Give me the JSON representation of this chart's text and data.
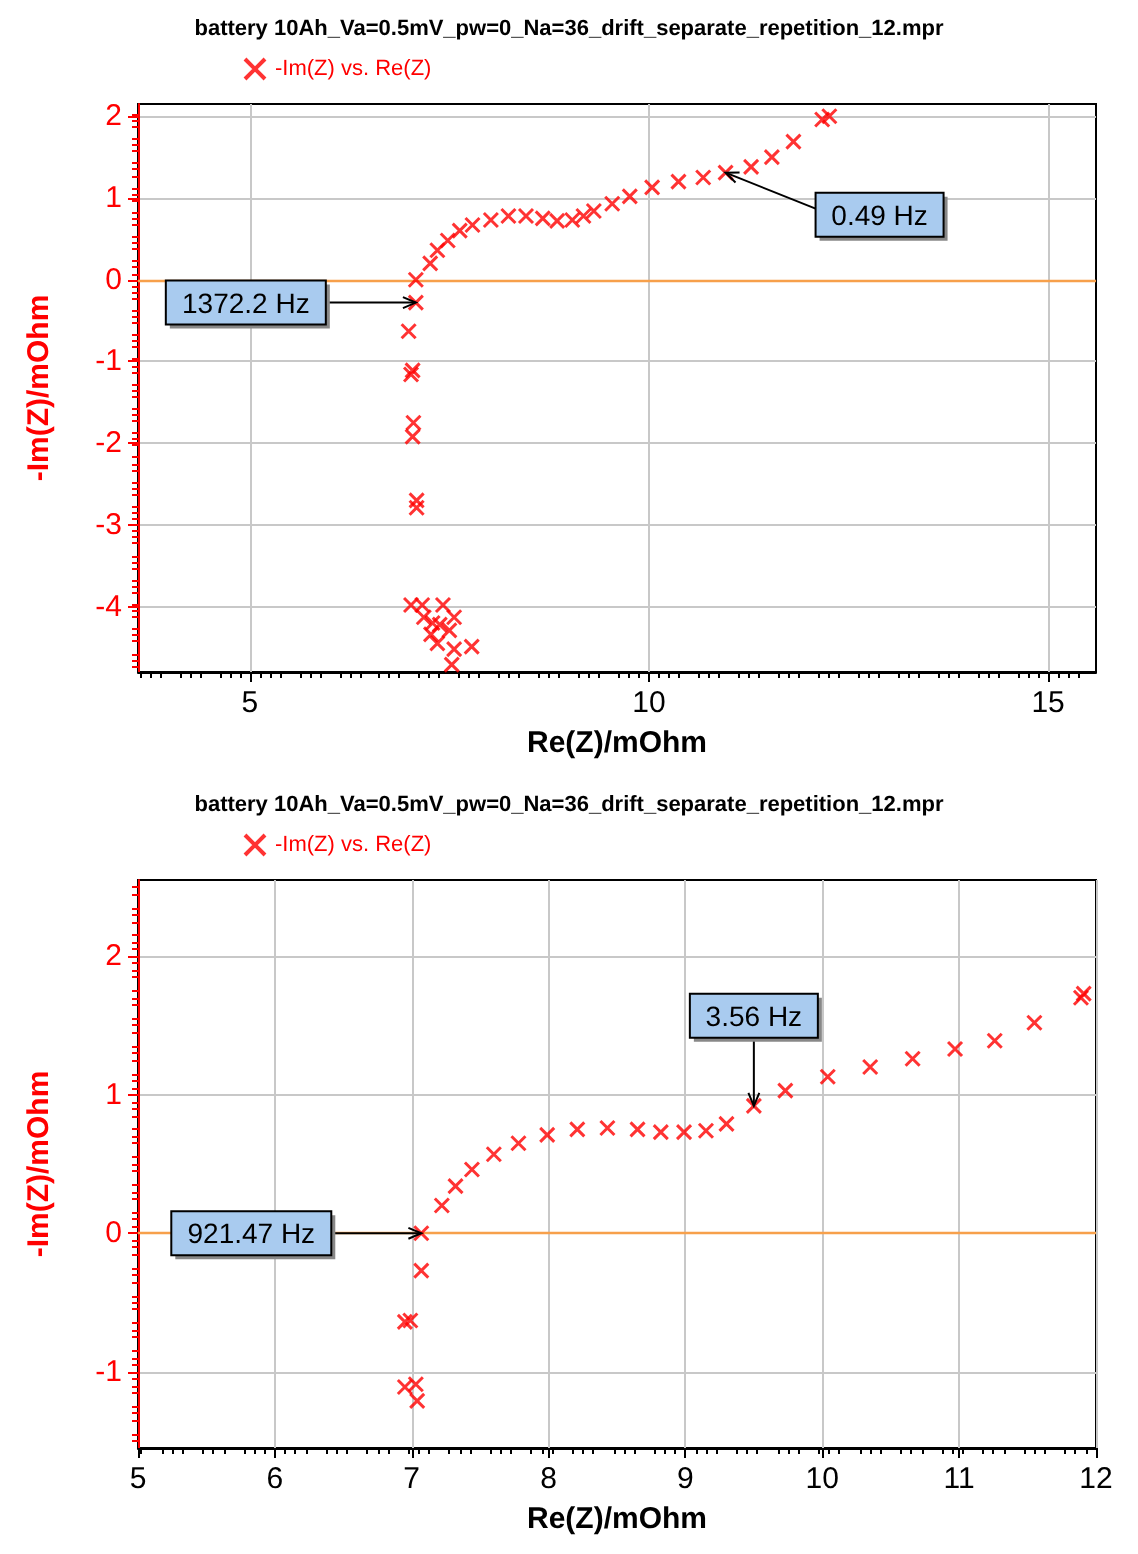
{
  "chart_data": [
    {
      "type": "scatter",
      "title": "battery 10Ah_Va=0.5mV_pw=0_Na=36_drift_separate_repetition_12.mpr",
      "xlabel": "Re(Z)/mOhm",
      "ylabel": "-Im(Z)/mOhm",
      "series": [
        {
          "name": "-Im(Z) vs. Re(Z)",
          "color": "#ff0000",
          "x": [
            7.08,
            7.08,
            6.99,
            7.04,
            7.26,
            7.35,
            7.48,
            7.63,
            7.79,
            8.02,
            8.24,
            8.46,
            8.67,
            8.85,
            9.04,
            9.18,
            9.31,
            9.54,
            9.76,
            10.04,
            10.37,
            10.68,
            10.96,
            11.28,
            11.54,
            11.81,
            12.17,
            12.26,
            7.02,
            7.05,
            7.04,
            7.09,
            7.09,
            7.02,
            7.16,
            7.42,
            7.18,
            7.56,
            7.29,
            7.38,
            7.5,
            7.27,
            7.35,
            7.56,
            7.78,
            7.53
          ],
          "values": [
            0,
            -0.28,
            -0.63,
            -1.11,
            0.2,
            0.36,
            0.48,
            0.6,
            0.67,
            0.73,
            0.78,
            0.78,
            0.75,
            0.72,
            0.73,
            0.78,
            0.84,
            0.93,
            1.02,
            1.13,
            1.2,
            1.25,
            1.31,
            1.38,
            1.5,
            1.69,
            1.96,
            2.0,
            -1.16,
            -1.75,
            -1.92,
            -2.7,
            -2.79,
            -3.98,
            -3.98,
            -3.98,
            -4.13,
            -4.13,
            -4.2,
            -4.22,
            -4.29,
            -4.34,
            -4.45,
            -4.52,
            -4.49,
            -4.71
          ]
        }
      ],
      "xlim": [
        3.6,
        15.6
      ],
      "xticks": [
        5,
        10,
        15
      ],
      "ylim": [
        -4.8,
        2.15
      ],
      "yticks": [
        -4,
        -3,
        -2,
        -1,
        0,
        1,
        2
      ],
      "grid": true,
      "legend": "top left",
      "marker": "cross",
      "ref_lines": [
        {
          "axis": "y",
          "value": 0,
          "color": "#f7a04b"
        }
      ],
      "annotations": [
        {
          "text": "1372.2 Hz",
          "x": 7.08,
          "y": -0.28
        },
        {
          "text": "0.49 Hz",
          "x": 10.96,
          "y": 1.31
        }
      ]
    },
    {
      "type": "scatter",
      "title": "battery 10Ah_Va=0.5mV_pw=0_Na=36_drift_separate_repetition_12.mpr",
      "xlabel": "Re(Z)/mOhm",
      "ylabel": "-Im(Z)/mOhm",
      "series": [
        {
          "name": "-Im(Z) vs. Re(Z)",
          "color": "#ff0000",
          "x": [
            7.07,
            7.07,
            6.95,
            6.99,
            7.03,
            6.95,
            7.04,
            7.22,
            7.32,
            7.44,
            7.6,
            7.78,
            7.99,
            8.21,
            8.43,
            8.65,
            8.82,
            8.99,
            9.15,
            9.3,
            9.5,
            9.73,
            10.04,
            10.35,
            10.66,
            10.97,
            11.26,
            11.55,
            11.89,
            11.91
          ],
          "values": [
            0,
            -0.27,
            -0.64,
            -0.63,
            -1.09,
            -1.11,
            -1.21,
            0.2,
            0.34,
            0.46,
            0.57,
            0.65,
            0.71,
            0.75,
            0.76,
            0.75,
            0.73,
            0.73,
            0.74,
            0.79,
            0.92,
            1.03,
            1.13,
            1.2,
            1.26,
            1.33,
            1.39,
            1.52,
            1.7,
            1.73
          ]
        }
      ],
      "xlim": [
        5,
        12
      ],
      "xticks": [
        5,
        6,
        7,
        8,
        9,
        10,
        11,
        12
      ],
      "ylim": [
        -1.55,
        2.55
      ],
      "yticks": [
        -1,
        0,
        1,
        2
      ],
      "grid": true,
      "legend": "top left",
      "marker": "cross",
      "ref_lines": [
        {
          "axis": "y",
          "value": 0,
          "color": "#f7a04b"
        }
      ],
      "annotations": [
        {
          "text": "921.47 Hz",
          "x": 7.07,
          "y": 0
        },
        {
          "text": "3.56 Hz",
          "x": 9.5,
          "y": 0.92
        }
      ]
    }
  ]
}
